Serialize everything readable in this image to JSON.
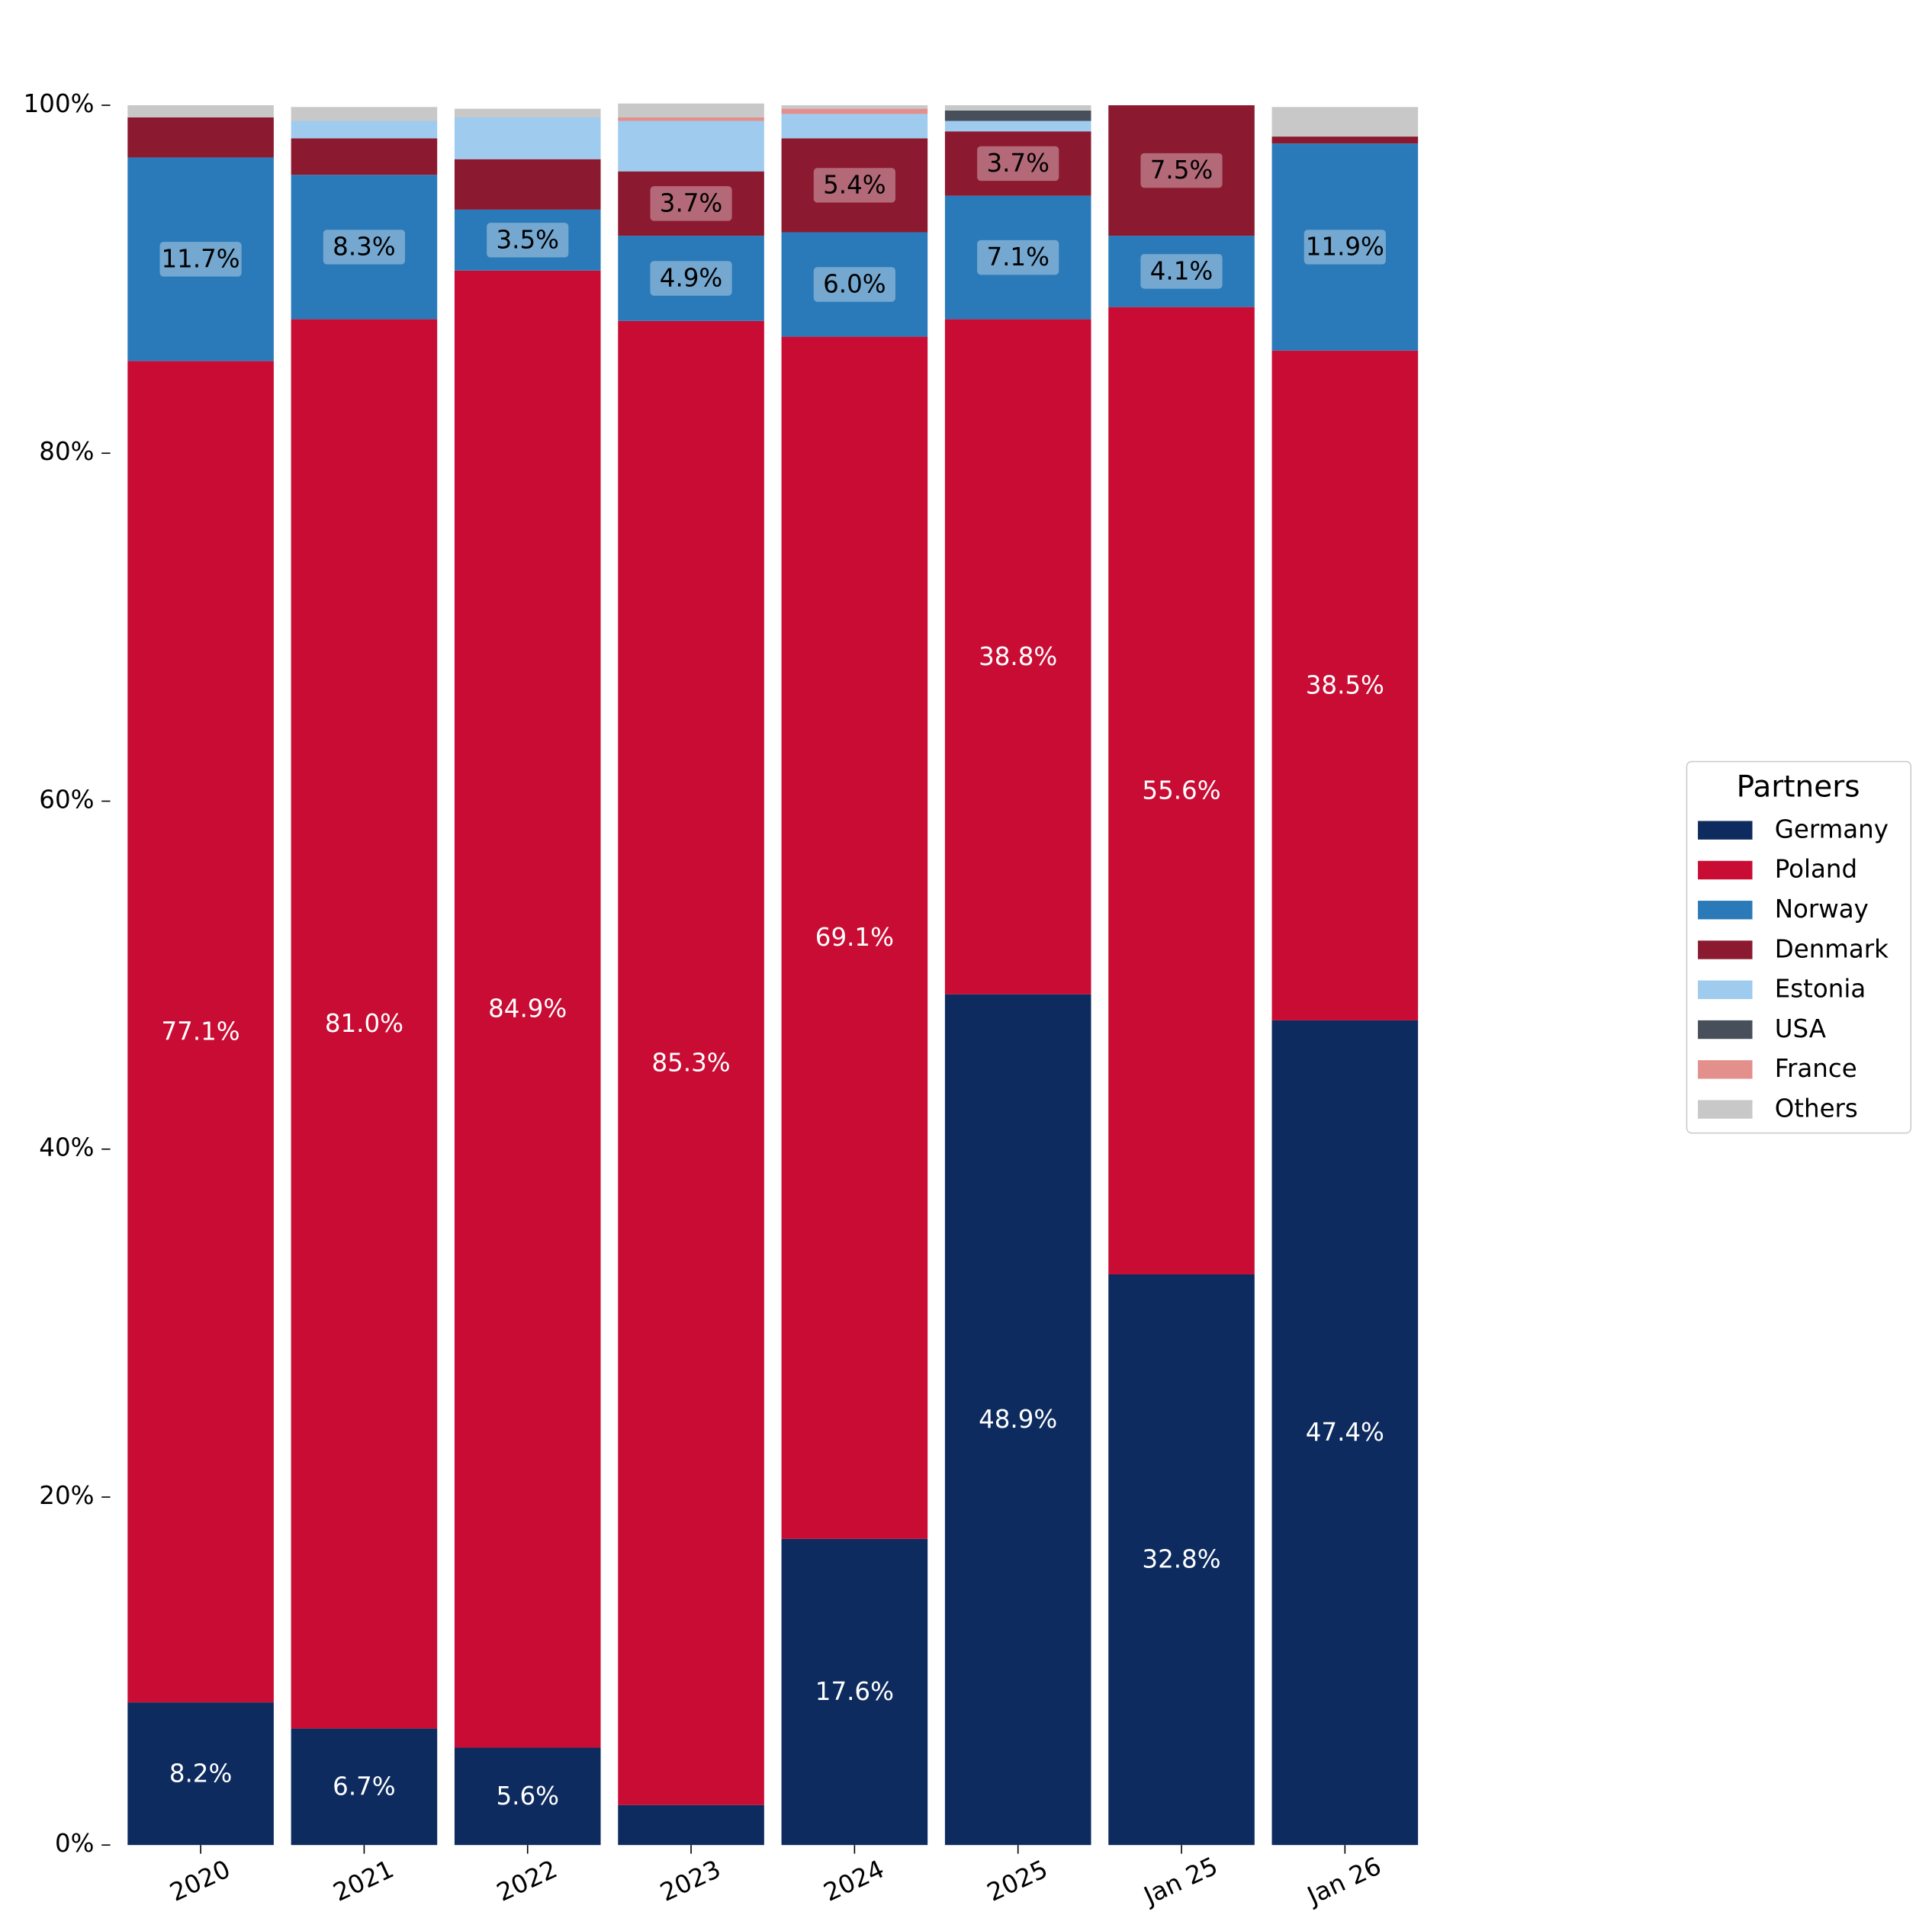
{
  "chart_data": {
    "type": "stacked_bar",
    "categories": [
      "2020",
      "2021",
      "2022",
      "2023",
      "2024",
      "2025",
      "Jan 25",
      "Jan 26"
    ],
    "ylim": [
      0,
      100
    ],
    "yticks": [
      {
        "value": 0,
        "label": "0%"
      },
      {
        "value": 20,
        "label": "20%"
      },
      {
        "value": 40,
        "label": "40%"
      },
      {
        "value": 60,
        "label": "60%"
      },
      {
        "value": 80,
        "label": "80%"
      },
      {
        "value": 100,
        "label": "100%"
      }
    ],
    "legend_title": "Partners",
    "legend_position": "right",
    "series": [
      {
        "name": "Germany",
        "color": "#0d2b5e",
        "label_color": "#ffffff",
        "values": [
          8.2,
          6.7,
          5.6,
          2.3,
          17.6,
          48.9,
          32.8,
          47.4
        ],
        "value_labels": [
          "8.2%",
          "6.7%",
          "5.6%",
          null,
          "17.6%",
          "48.9%",
          "32.8%",
          "47.4%"
        ]
      },
      {
        "name": "Poland",
        "color": "#c80c34",
        "label_color": "#ffffff",
        "values": [
          77.1,
          81.0,
          84.9,
          85.3,
          69.1,
          38.8,
          55.6,
          38.5
        ],
        "value_labels": [
          "77.1%",
          "81.0%",
          "84.9%",
          "85.3%",
          "69.1%",
          "38.8%",
          "55.6%",
          "38.5%"
        ]
      },
      {
        "name": "Norway",
        "color": "#2a7ab9",
        "label_color": "#000000",
        "values": [
          11.7,
          8.3,
          3.5,
          4.9,
          6.0,
          7.1,
          4.1,
          11.9
        ],
        "value_labels": [
          "11.7%",
          "8.3%",
          "3.5%",
          "4.9%",
          "6.0%",
          "7.1%",
          "4.1%",
          "11.9%"
        ]
      },
      {
        "name": "Denmark",
        "color": "#8b1a30",
        "label_color": "#000000",
        "values": [
          2.3,
          2.1,
          2.9,
          3.7,
          5.4,
          3.7,
          7.5,
          0.4
        ],
        "value_labels": [
          null,
          null,
          null,
          "3.7%",
          "5.4%",
          "3.7%",
          "7.5%",
          null
        ]
      },
      {
        "name": "Estonia",
        "color": "#9fcbee",
        "label_color": "#000000",
        "values": [
          0,
          1.0,
          2.4,
          2.9,
          1.4,
          0.6,
          0,
          0
        ],
        "value_labels": [
          null,
          null,
          null,
          null,
          null,
          null,
          null,
          null
        ]
      },
      {
        "name": "USA",
        "color": "#474f5a",
        "label_color": "#000000",
        "values": [
          0,
          0,
          0,
          0,
          0,
          0.6,
          0,
          0
        ],
        "value_labels": [
          null,
          null,
          null,
          null,
          null,
          null,
          null,
          null
        ]
      },
      {
        "name": "France",
        "color": "#e38f8c",
        "label_color": "#000000",
        "values": [
          0,
          0,
          0,
          0.2,
          0.3,
          0,
          0,
          0
        ],
        "value_labels": [
          null,
          null,
          null,
          null,
          null,
          null,
          null,
          null
        ]
      },
      {
        "name": "Others",
        "color": "#c8c8c8",
        "label_color": "#000000",
        "values": [
          0.7,
          0.8,
          0.5,
          0.8,
          0.2,
          0.3,
          0,
          1.7
        ],
        "value_labels": [
          null,
          null,
          null,
          null,
          null,
          null,
          null,
          null
        ]
      }
    ]
  }
}
